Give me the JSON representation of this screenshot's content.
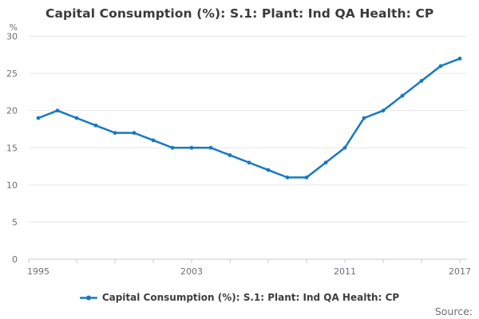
{
  "chart": {
    "title": "Capital Consumption (%): S.1: Plant: Ind QA Health: CP",
    "legend_label": "Capital Consumption (%): S.1: Plant: Ind QA Health: CP",
    "source_label": "Source:"
  },
  "chart_data": {
    "type": "line",
    "title": "Capital Consumption (%): S.1: Plant: Ind QA Health: CP",
    "x": [
      1995,
      1996,
      1997,
      1998,
      1999,
      2000,
      2001,
      2002,
      2003,
      2004,
      2005,
      2006,
      2007,
      2008,
      2009,
      2010,
      2011,
      2012,
      2013,
      2014,
      2015,
      2016,
      2017
    ],
    "series": [
      {
        "name": "Capital Consumption (%): S.1: Plant: Ind QA Health: CP",
        "values": [
          19,
          20,
          19,
          18,
          17,
          17,
          16,
          15,
          15,
          15,
          14,
          13,
          12,
          11,
          11,
          13,
          15,
          19,
          20,
          22,
          24,
          26,
          27
        ]
      }
    ],
    "xlabel": "",
    "ylabel": "%",
    "ylim": [
      0,
      30
    ],
    "y_ticks": [
      0,
      5,
      10,
      15,
      20,
      25,
      30
    ],
    "x_tick_labels": [
      "1995",
      "2003",
      "2011",
      "2017"
    ],
    "x_minor_tick_step_years": 2,
    "grid": true,
    "legend_position": "bottom",
    "colors": {
      "line": "#1779c2",
      "gridline": "#e6e6e6",
      "axis_line": "#c5cad4",
      "tick_label": "#6f6f6f",
      "title_text": "#3a3a3a",
      "legend_text": "#3d3d3d",
      "source_text": "#6e6e6e"
    }
  }
}
